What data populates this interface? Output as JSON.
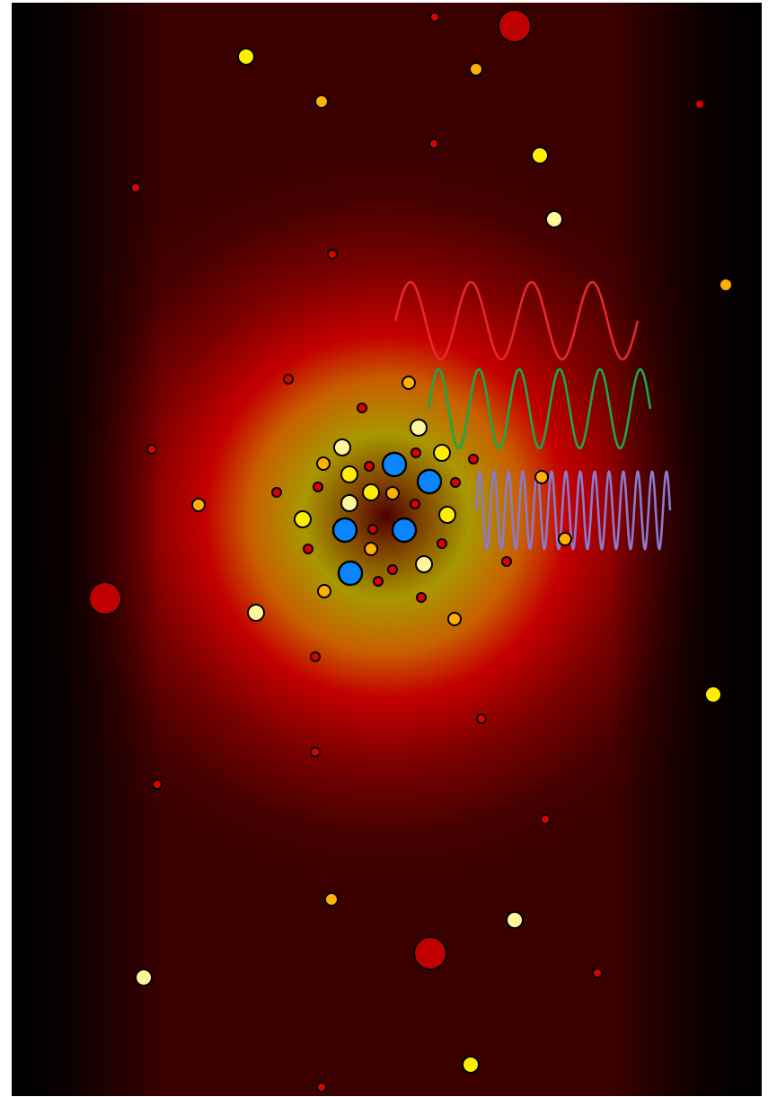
{
  "scene": {
    "description_free": true,
    "colors": {
      "panel_dark": "#000000",
      "background_maroon": "#3a0000",
      "glow_red": "#c40000",
      "glow_yellow": "#a89800",
      "core_dark": "#4a0000",
      "particle_red": "#e00000",
      "particle_orange": "#ffb000",
      "particle_yellow": "#ffee00",
      "particle_pale": "#fff59a",
      "particle_blue": "#0a84ff",
      "big_red": "#c00000",
      "wave_red": "#e8282a",
      "wave_green": "#1aa84a",
      "wave_violet": "#8a7ad0",
      "outline": "#000000"
    },
    "particle_kinds": [
      "red",
      "orange",
      "yellow",
      "pale",
      "blue",
      "big-red"
    ],
    "waves": [
      {
        "name": "red-wave",
        "color_key": "wave_red",
        "cycles": 4,
        "kind": "long-wavelength"
      },
      {
        "name": "green-wave",
        "color_key": "wave_green",
        "cycles": 5.5,
        "kind": "medium-wavelength"
      },
      {
        "name": "violet-wave",
        "color_key": "wave_violet",
        "cycles": 13.5,
        "kind": "short-wavelength"
      }
    ]
  }
}
